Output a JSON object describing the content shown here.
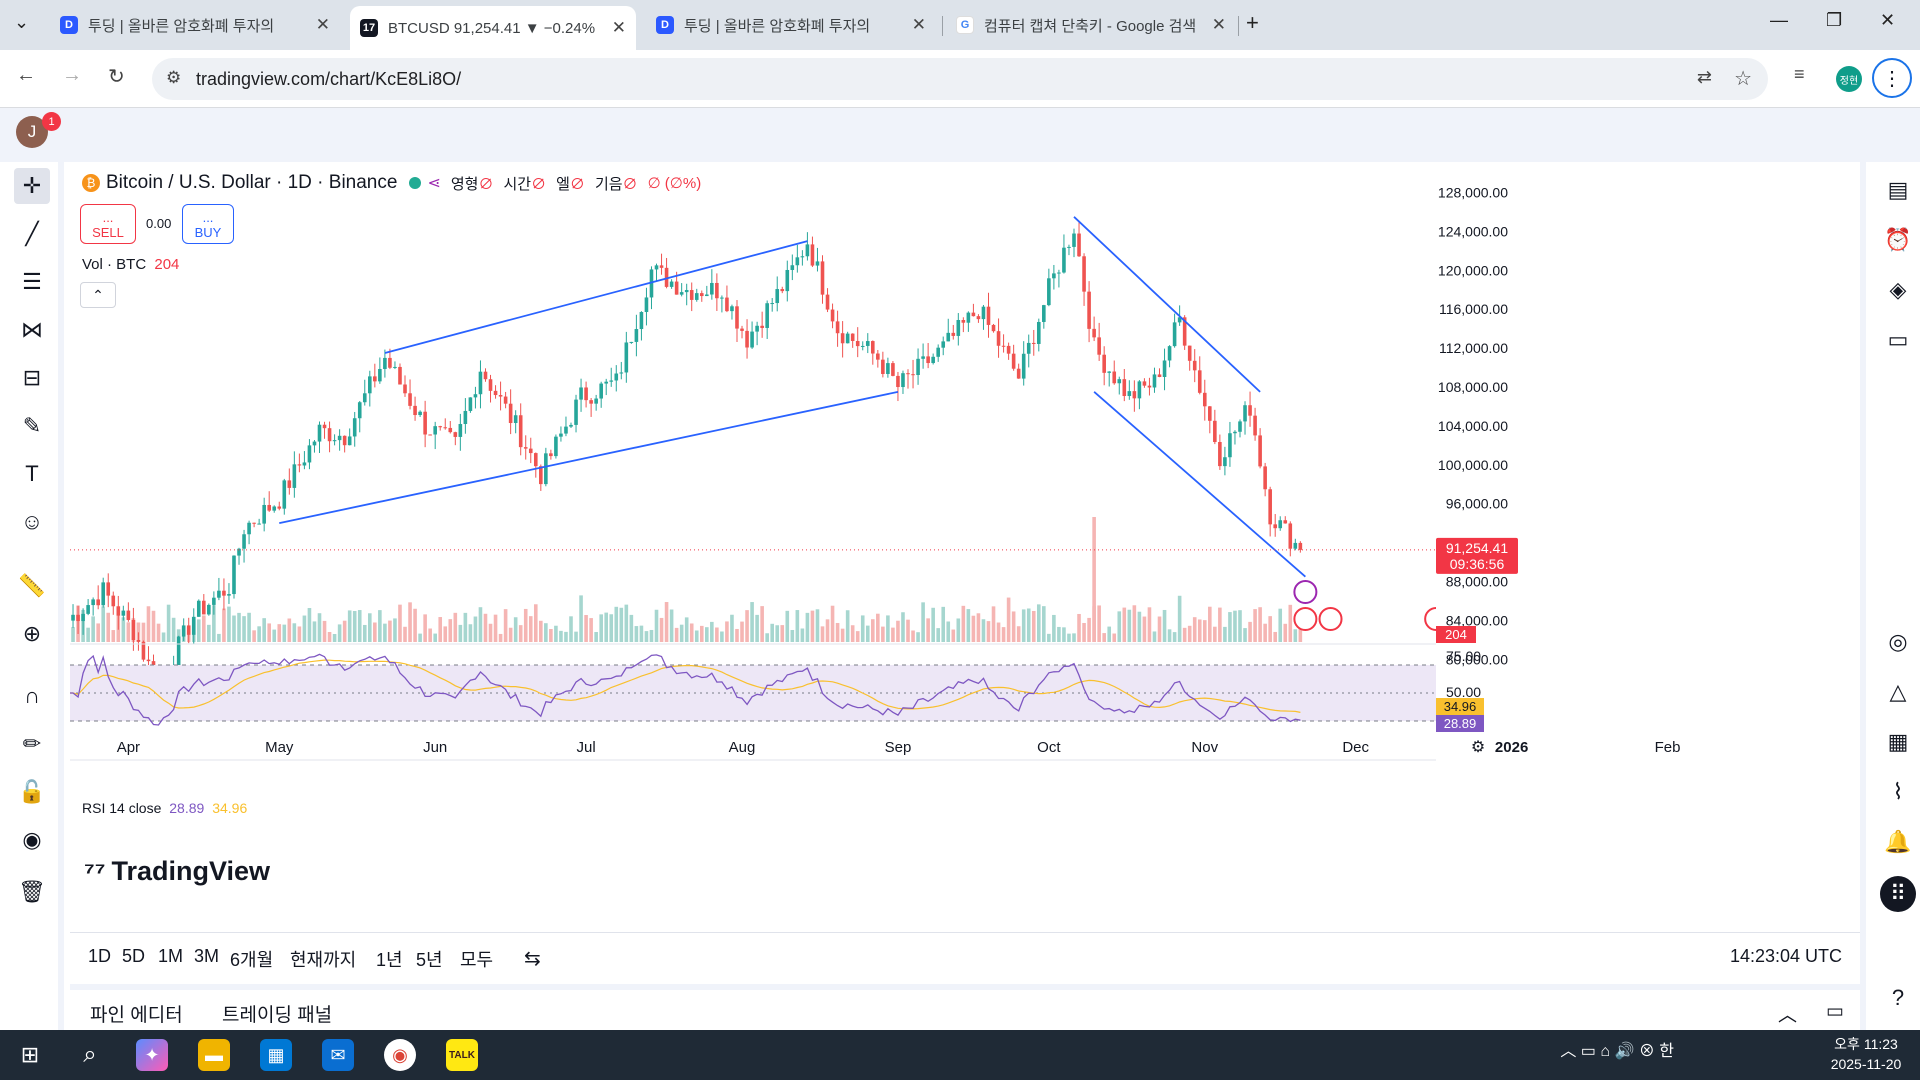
{
  "browser": {
    "tabs": [
      {
        "title": "투딩 | 올바른 암호화폐 투자의",
        "icon": "toding-favicon"
      },
      {
        "title": "BTCUSD 91,254.41 ▼ −0.24%",
        "icon": "tradingview-favicon"
      },
      {
        "title": "투딩 | 올바른 암호화폐 투자의",
        "icon": "toding-favicon"
      },
      {
        "title": "컴퓨터 캡쳐 단축키 - Google 검색",
        "icon": "google-favicon"
      }
    ],
    "active_tab": 1,
    "url": "tradingview.com/chart/KcE8Li8O/",
    "profile_badge": "정현"
  },
  "tv": {
    "avatar_letter": "J",
    "notification_count": "1",
    "legend": {
      "symbol": "Bitcoin / U.S. Dollar · 1D · Binance",
      "o_label": "영형",
      "h_label": "시간",
      "l_label": "엘",
      "c_label": "기음",
      "o_value": "∅",
      "h_value": "∅",
      "l_value": "∅",
      "c_value": "∅",
      "change": "∅ (∅%)"
    },
    "sell_label": "SELL",
    "buy_label": "BUY",
    "sell_dots": "...",
    "buy_dots": "...",
    "spread": "0.00",
    "volume_label": "Vol · BTC",
    "volume_value": "204",
    "rsi_label": "RSI 14 close",
    "rsi_value": "28.89",
    "rsi_ma_value": "34.96",
    "logo_text": "TradingView",
    "current_price": "91,254.41",
    "countdown": "09:36:56",
    "time_ranges": [
      "1D",
      "5D",
      "1M",
      "3M",
      "6개월",
      "현재까지",
      "1년",
      "5년",
      "모두"
    ],
    "clock": "14:23:04 UTC",
    "panels": [
      "파인 에디터",
      "트레이딩 패널"
    ]
  },
  "chart_data": {
    "type": "candlestick",
    "symbol": "BTCUSD",
    "interval": "1D",
    "price_ticks": [
      128000,
      124000,
      120000,
      116000,
      112000,
      108000,
      104000,
      100000,
      96000,
      92000,
      88000,
      84000,
      80000
    ],
    "price_tick_labels": [
      "128,000.00",
      "124,000.00",
      "120,000.00",
      "116,000.00",
      "112,000.00",
      "108,000.00",
      "104,000.00",
      "100,000.00",
      "96,000.00",
      "92,000.00",
      "88,000.00",
      "84,000.00",
      "80,000.00"
    ],
    "x_labels": [
      "Apr",
      "May",
      "Jun",
      "Jul",
      "Aug",
      "Sep",
      "Oct",
      "Nov",
      "Dec",
      "2026",
      "Feb"
    ],
    "rsi_ticks": [
      "75.00",
      "50.00"
    ],
    "current_price": 91254.41,
    "close_path": [
      {
        "date": "2025-03-20",
        "price": 84000
      },
      {
        "date": "2025-03-27",
        "price": 87000
      },
      {
        "date": "2025-04-02",
        "price": 83000
      },
      {
        "date": "2025-04-07",
        "price": 77000
      },
      {
        "date": "2025-04-14",
        "price": 84500
      },
      {
        "date": "2025-04-21",
        "price": 87500
      },
      {
        "date": "2025-04-24",
        "price": 93500
      },
      {
        "date": "2025-05-01",
        "price": 96500
      },
      {
        "date": "2025-05-09",
        "price": 103500
      },
      {
        "date": "2025-05-14",
        "price": 103000
      },
      {
        "date": "2025-05-22",
        "price": 111000
      },
      {
        "date": "2025-05-30",
        "price": 104000
      },
      {
        "date": "2025-06-05",
        "price": 102000
      },
      {
        "date": "2025-06-10",
        "price": 110000
      },
      {
        "date": "2025-06-17",
        "price": 104000
      },
      {
        "date": "2025-06-22",
        "price": 99000
      },
      {
        "date": "2025-06-30",
        "price": 107000
      },
      {
        "date": "2025-07-07",
        "price": 108500
      },
      {
        "date": "2025-07-14",
        "price": 120000
      },
      {
        "date": "2025-07-21",
        "price": 118000
      },
      {
        "date": "2025-07-28",
        "price": 118000
      },
      {
        "date": "2025-08-02",
        "price": 113000
      },
      {
        "date": "2025-08-10",
        "price": 119000
      },
      {
        "date": "2025-08-14",
        "price": 123000
      },
      {
        "date": "2025-08-20",
        "price": 114000
      },
      {
        "date": "2025-08-28",
        "price": 111000
      },
      {
        "date": "2025-09-01",
        "price": 108000
      },
      {
        "date": "2025-09-10",
        "price": 112000
      },
      {
        "date": "2025-09-17",
        "price": 116000
      },
      {
        "date": "2025-09-25",
        "price": 109000
      },
      {
        "date": "2025-10-01",
        "price": 118000
      },
      {
        "date": "2025-10-06",
        "price": 124500
      },
      {
        "date": "2025-10-10",
        "price": 112000
      },
      {
        "date": "2025-10-17",
        "price": 107000
      },
      {
        "date": "2025-10-22",
        "price": 108500
      },
      {
        "date": "2025-10-27",
        "price": 115000
      },
      {
        "date": "2025-11-04",
        "price": 101000
      },
      {
        "date": "2025-11-10",
        "price": 106000
      },
      {
        "date": "2025-11-14",
        "price": 95000
      },
      {
        "date": "2025-11-20",
        "price": 91254
      }
    ],
    "trendlines": [
      {
        "name": "ascending-channel-upper",
        "from": {
          "date": "2025-05-22",
          "price": 111500
        },
        "to": {
          "date": "2025-08-14",
          "price": 123000
        }
      },
      {
        "name": "ascending-channel-lower",
        "from": {
          "date": "2025-05-01",
          "price": 94000
        },
        "to": {
          "date": "2025-09-01",
          "price": 107500
        }
      },
      {
        "name": "descending-channel-upper",
        "from": {
          "date": "2025-10-06",
          "price": 125500
        },
        "to": {
          "date": "2025-11-12",
          "price": 107500
        }
      },
      {
        "name": "descending-channel-lower",
        "from": {
          "date": "2025-10-10",
          "price": 107500
        },
        "to": {
          "date": "2025-11-21",
          "price": 88500
        }
      }
    ]
  }
}
